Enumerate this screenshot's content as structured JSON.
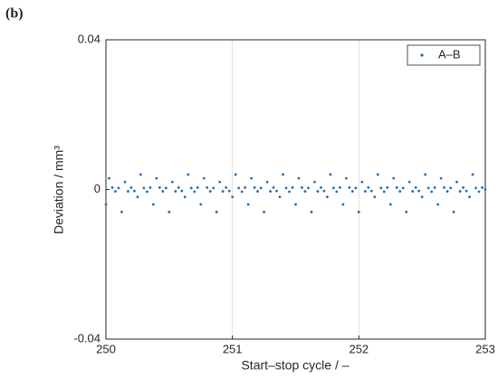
{
  "chart_data": {
    "type": "scatter",
    "panel_label": "(b)",
    "xlabel": "Start–stop cycle / –",
    "ylabel": "Deviation / mm³",
    "xlim": [
      250,
      253
    ],
    "xticks": [
      250,
      251,
      252,
      253
    ],
    "ylim": [
      -0.04,
      0.04
    ],
    "yticks": [
      -0.04,
      0,
      0.04
    ],
    "grid": "x",
    "legend": "upper right",
    "series": [
      {
        "name": "A–B",
        "color": "#1f6fb5",
        "x": [
          250,
          250.025,
          250.05,
          250.075,
          250.1,
          250.125,
          250.15,
          250.175,
          250.2,
          250.225,
          250.25,
          250.275,
          250.3,
          250.325,
          250.35,
          250.375,
          250.4,
          250.425,
          250.45,
          250.475,
          250.5,
          250.525,
          250.55,
          250.575,
          250.6,
          250.625,
          250.65,
          250.675,
          250.7,
          250.725,
          250.75,
          250.775,
          250.8,
          250.825,
          250.85,
          250.875,
          250.9,
          250.925,
          250.95,
          250.975,
          251,
          251.025,
          251.05,
          251.075,
          251.1,
          251.125,
          251.15,
          251.175,
          251.2,
          251.225,
          251.25,
          251.275,
          251.3,
          251.325,
          251.35,
          251.375,
          251.4,
          251.425,
          251.45,
          251.475,
          251.5,
          251.525,
          251.55,
          251.575,
          251.6,
          251.625,
          251.65,
          251.675,
          251.7,
          251.725,
          251.75,
          251.775,
          251.8,
          251.825,
          251.85,
          251.875,
          251.9,
          251.925,
          251.95,
          251.975,
          252,
          252.025,
          252.05,
          252.075,
          252.1,
          252.125,
          252.15,
          252.175,
          252.2,
          252.225,
          252.25,
          252.275,
          252.3,
          252.325,
          252.35,
          252.375,
          252.4,
          252.425,
          252.45,
          252.475,
          252.5,
          252.525,
          252.55,
          252.575,
          252.6,
          252.625,
          252.65,
          252.675,
          252.7,
          252.725,
          252.75,
          252.775,
          252.8,
          252.825,
          252.85,
          252.875,
          252.9,
          252.925,
          252.95,
          252.975,
          253
        ],
        "values": [
          -0.004,
          0.003,
          0.0005,
          -0.0005,
          0.0004,
          -0.006,
          0.002,
          -0.0005,
          0.0005,
          -0.0004,
          -0.002,
          0.004,
          0.0004,
          -0.0006,
          0.0005,
          -0.004,
          0.003,
          0.0005,
          -0.0005,
          0.0004,
          -0.006,
          0.002,
          -0.0005,
          0.0005,
          -0.0004,
          -0.002,
          0.004,
          0.0004,
          -0.0006,
          0.0005,
          -0.004,
          0.003,
          0.0005,
          -0.0005,
          0.0004,
          -0.006,
          0.002,
          -0.0005,
          0.0005,
          -0.0004,
          -0.002,
          0.004,
          0.0004,
          -0.0006,
          0.0005,
          -0.004,
          0.003,
          0.0005,
          -0.0005,
          0.0004,
          -0.006,
          0.002,
          -0.0005,
          0.0005,
          -0.0004,
          -0.002,
          0.004,
          0.0004,
          -0.0006,
          0.0005,
          -0.004,
          0.003,
          0.0005,
          -0.0005,
          0.0004,
          -0.006,
          0.002,
          -0.0005,
          0.0005,
          -0.0004,
          -0.002,
          0.004,
          0.0004,
          -0.0006,
          0.0005,
          -0.004,
          0.003,
          0.0005,
          -0.0005,
          0.0004,
          -0.006,
          0.002,
          -0.0005,
          0.0005,
          -0.0004,
          -0.002,
          0.004,
          0.0004,
          -0.0006,
          0.0005,
          -0.004,
          0.003,
          0.0005,
          -0.0005,
          0.0004,
          -0.006,
          0.002,
          -0.0005,
          0.0005,
          -0.0004,
          -0.002,
          0.004,
          0.0004,
          -0.0006,
          0.0005,
          -0.004,
          0.003,
          0.0005,
          -0.0005,
          0.0004,
          -0.006,
          0.002,
          -0.0005,
          0.0005,
          -0.0004,
          -0.002,
          0.004,
          0.0004,
          -0.0006,
          0.0005,
          0
        ]
      }
    ]
  }
}
